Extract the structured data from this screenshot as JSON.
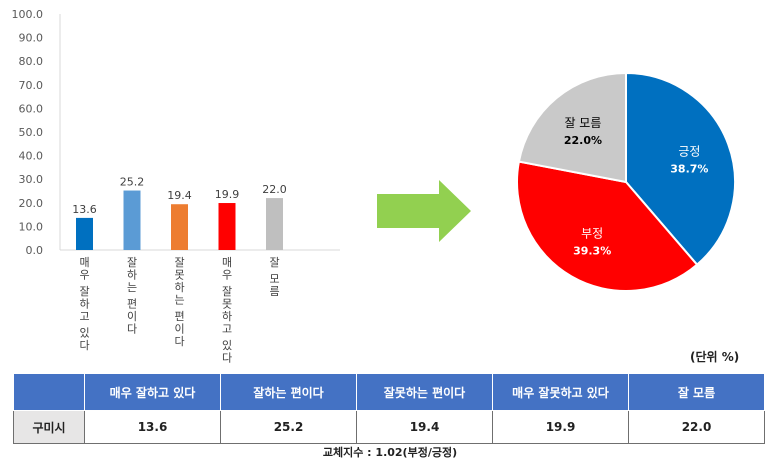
{
  "chart_data": [
    {
      "type": "bar",
      "categories": [
        "매우 잘하고 있다",
        "잘하는 편이다",
        "잘못하는 편이다",
        "매우 잘못하고 있다",
        "잘 모름"
      ],
      "values": [
        13.6,
        25.2,
        19.4,
        19.9,
        22.0
      ],
      "value_labels": [
        "13.6",
        "25.2",
        "19.4",
        "19.9",
        "22.0"
      ],
      "colors": [
        "#0070c0",
        "#5b9bd5",
        "#ed7d31",
        "#ff0000",
        "#bfbfbf"
      ],
      "ylim": [
        0,
        100
      ],
      "yticks": [
        "0.0",
        "10.0",
        "20.0",
        "30.0",
        "40.0",
        "50.0",
        "60.0",
        "70.0",
        "80.0",
        "90.0",
        "100.0"
      ],
      "grid": false
    },
    {
      "type": "pie",
      "labels": [
        "긍정",
        "부정",
        "잘 모름"
      ],
      "values": [
        38.7,
        39.3,
        22.0
      ],
      "value_labels": [
        "38.7%",
        "39.3%",
        "22.0%"
      ],
      "colors": [
        "#0070c0",
        "#ff0000",
        "#c9c9c9"
      ],
      "label_colors": [
        "#ffffff",
        "#ffffff",
        "#000000"
      ]
    }
  ],
  "unit_label": "(단위 %)",
  "arrow_color": "#92d050",
  "table": {
    "headers": [
      "",
      "매우 잘하고 있다",
      "잘하는 편이다",
      "잘못하는 편이다",
      "매우 잘못하고 있다",
      "잘 모름"
    ],
    "row": {
      "label": "구미시",
      "values": [
        "13.6",
        "25.2",
        "19.4",
        "19.9",
        "22.0"
      ]
    }
  },
  "footnote": "교체지수 : 1.02(부정/긍정)"
}
